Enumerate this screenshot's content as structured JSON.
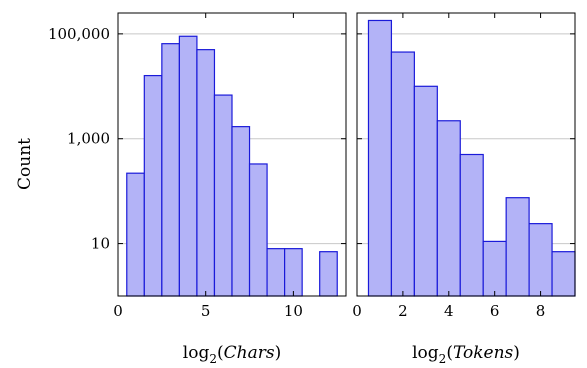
{
  "chart_data": [
    {
      "type": "bar",
      "panel": "left",
      "y_scale": "log",
      "ylabel": "Count",
      "xlabel": {
        "prefix": "log",
        "subscript": "2",
        "open": "(",
        "var": "Chars",
        "close": ")"
      },
      "xlim": [
        0,
        13
      ],
      "ylim": [
        1,
        250000
      ],
      "x_ticks": [
        {
          "value": 0,
          "label": "0"
        },
        {
          "value": 5,
          "label": "5"
        },
        {
          "value": 10,
          "label": "10"
        }
      ],
      "y_ticks": [
        {
          "value": 100000,
          "label": "100,000"
        },
        {
          "value": 1000,
          "label": "1,000"
        },
        {
          "value": 10,
          "label": "10"
        }
      ],
      "grid": "horizontal",
      "bins": [
        {
          "x0": 0.5,
          "x1": 1.5,
          "value": 220
        },
        {
          "x0": 1.5,
          "x1": 2.5,
          "value": 16000
        },
        {
          "x0": 2.5,
          "x1": 3.5,
          "value": 65000
        },
        {
          "x0": 3.5,
          "x1": 4.5,
          "value": 90000
        },
        {
          "x0": 4.5,
          "x1": 5.5,
          "value": 50000
        },
        {
          "x0": 5.5,
          "x1": 6.5,
          "value": 6800
        },
        {
          "x0": 6.5,
          "x1": 7.5,
          "value": 1700
        },
        {
          "x0": 7.5,
          "x1": 8.5,
          "value": 330
        },
        {
          "x0": 8.5,
          "x1": 9.5,
          "value": 8
        },
        {
          "x0": 9.5,
          "x1": 10.5,
          "value": 8
        },
        {
          "x0": 11.5,
          "x1": 12.5,
          "value": 7
        }
      ]
    },
    {
      "type": "bar",
      "panel": "right",
      "y_scale": "log",
      "xlabel": {
        "prefix": "log",
        "subscript": "2",
        "open": "(",
        "var": "Tokens",
        "close": ")"
      },
      "xlim": [
        0,
        9.5
      ],
      "ylim": [
        1,
        250000
      ],
      "x_ticks": [
        {
          "value": 0,
          "label": "0"
        },
        {
          "value": 2,
          "label": "2"
        },
        {
          "value": 4,
          "label": "4"
        },
        {
          "value": 6,
          "label": "6"
        },
        {
          "value": 8,
          "label": "8"
        }
      ],
      "y_ticks": [
        {
          "value": 100000,
          "label": ""
        },
        {
          "value": 1000,
          "label": ""
        },
        {
          "value": 10,
          "label": ""
        }
      ],
      "grid": "horizontal",
      "bins": [
        {
          "x0": 0.5,
          "x1": 1.5,
          "value": 180000
        },
        {
          "x0": 1.5,
          "x1": 2.5,
          "value": 45000
        },
        {
          "x0": 2.5,
          "x1": 3.5,
          "value": 10000
        },
        {
          "x0": 3.5,
          "x1": 4.5,
          "value": 2200
        },
        {
          "x0": 4.5,
          "x1": 5.5,
          "value": 500
        },
        {
          "x0": 5.5,
          "x1": 6.5,
          "value": 11
        },
        {
          "x0": 6.5,
          "x1": 7.5,
          "value": 75
        },
        {
          "x0": 7.5,
          "x1": 8.5,
          "value": 24
        },
        {
          "x0": 8.5,
          "x1": 9.5,
          "value": 7
        }
      ]
    }
  ],
  "colors": {
    "bar_fill": "#b3b3f7",
    "bar_stroke": "#1a1ad9",
    "grid": "#c8c8c8"
  }
}
